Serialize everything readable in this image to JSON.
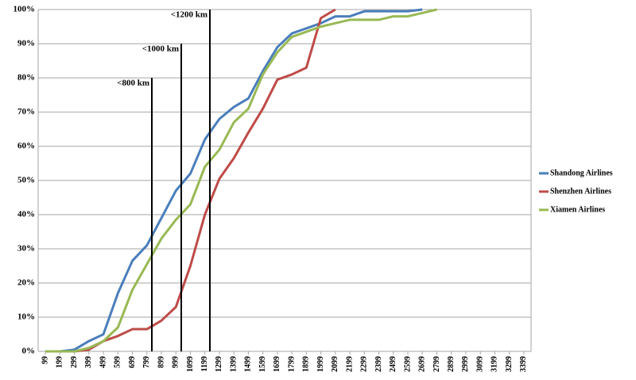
{
  "chart_data": {
    "type": "line",
    "categories": [
      "99",
      "199",
      "299",
      "399",
      "499",
      "599",
      "699",
      "799",
      "899",
      "999",
      "1099",
      "1199",
      "1299",
      "1399",
      "1499",
      "1599",
      "1699",
      "1799",
      "1899",
      "1999",
      "2099",
      "2199",
      "2299",
      "2399",
      "2499",
      "2599",
      "2699",
      "2799",
      "2899",
      "2999",
      "3099",
      "3199",
      "3299",
      "3399"
    ],
    "series": [
      {
        "name": "Shandong Airlines",
        "color": "#4a7ebb",
        "values": [
          0,
          0,
          0.5,
          3,
          5,
          17,
          26.5,
          31,
          39,
          47,
          52,
          62,
          68,
          71.5,
          74,
          82,
          89,
          93,
          94.5,
          96,
          98,
          98,
          99.5,
          99.5,
          99.5,
          99.5,
          100,
          null,
          null,
          null,
          null,
          null,
          null,
          null
        ]
      },
      {
        "name": "Shenzhen Airlines",
        "color": "#be4b48",
        "values": [
          0,
          0,
          0,
          0.5,
          3,
          4.5,
          6.5,
          6.5,
          9,
          13,
          25,
          40,
          50.5,
          56.5,
          64,
          71,
          79.5,
          81,
          83,
          97.5,
          100,
          null,
          null,
          null,
          null,
          null,
          null,
          null,
          null,
          null,
          null,
          null,
          null,
          null
        ]
      },
      {
        "name": "Xiamen Airlines",
        "color": "#98b954",
        "values": [
          0,
          0,
          0,
          1,
          3,
          7,
          18,
          25.5,
          33,
          38.5,
          43,
          54,
          59,
          67,
          71,
          81,
          87.5,
          92,
          93.5,
          95,
          96,
          97,
          97,
          97,
          98,
          98,
          99,
          100,
          null,
          null,
          null,
          null,
          null,
          null
        ]
      }
    ],
    "ylim": [
      0,
      100
    ],
    "yticks": [
      {
        "value": 0,
        "label": "0%"
      },
      {
        "value": 10,
        "label": "10%"
      },
      {
        "value": 20,
        "label": "20%"
      },
      {
        "value": 30,
        "label": "30%"
      },
      {
        "value": 40,
        "label": "40%"
      },
      {
        "value": 50,
        "label": "50%"
      },
      {
        "value": 60,
        "label": "60%"
      },
      {
        "value": 70,
        "label": "70%"
      },
      {
        "value": 80,
        "label": "80%"
      },
      {
        "value": 90,
        "label": "90%"
      },
      {
        "value": 100,
        "label": "100%"
      }
    ],
    "grid": true,
    "legend": "right",
    "annotations": [
      "<800 km",
      "<1000 km",
      "<1200 km"
    ]
  }
}
